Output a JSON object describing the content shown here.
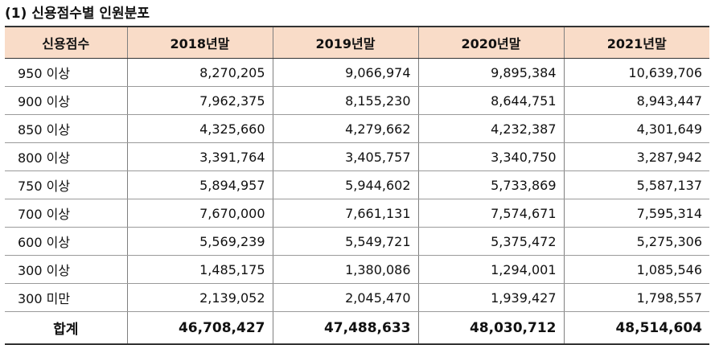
{
  "title": "(1) 신용점수별 인원분포",
  "table": {
    "headers": [
      "신용점수",
      "2018년말",
      "2019년말",
      "2020년말",
      "2021년말"
    ],
    "rows": [
      {
        "label": "950 이상",
        "values": [
          "8,270,205",
          "9,066,974",
          "9,895,384",
          "10,639,706"
        ]
      },
      {
        "label": "900 이상",
        "values": [
          "7,962,375",
          "8,155,230",
          "8,644,751",
          "8,943,447"
        ]
      },
      {
        "label": "850 이상",
        "values": [
          "4,325,660",
          "4,279,662",
          "4,232,387",
          "4,301,649"
        ]
      },
      {
        "label": "800 이상",
        "values": [
          "3,391,764",
          "3,405,757",
          "3,340,750",
          "3,287,942"
        ]
      },
      {
        "label": "750 이상",
        "values": [
          "5,894,957",
          "5,944,602",
          "5,733,869",
          "5,587,137"
        ]
      },
      {
        "label": "700 이상",
        "values": [
          "7,670,000",
          "7,661,131",
          "7,574,671",
          "7,595,314"
        ]
      },
      {
        "label": "600 이상",
        "values": [
          "5,569,239",
          "5,549,721",
          "5,375,472",
          "5,275,306"
        ]
      },
      {
        "label": "300 이상",
        "values": [
          "1,485,175",
          "1,380,086",
          "1,294,001",
          "1,085,546"
        ]
      },
      {
        "label": "300 미만",
        "values": [
          "2,139,052",
          "2,045,470",
          "1,939,427",
          "1,798,557"
        ]
      }
    ],
    "total": {
      "label": "합계",
      "values": [
        "46,708,427",
        "47,488,633",
        "48,030,712",
        "48,514,604"
      ]
    }
  },
  "colors": {
    "header_background": "#f9dcc8"
  }
}
